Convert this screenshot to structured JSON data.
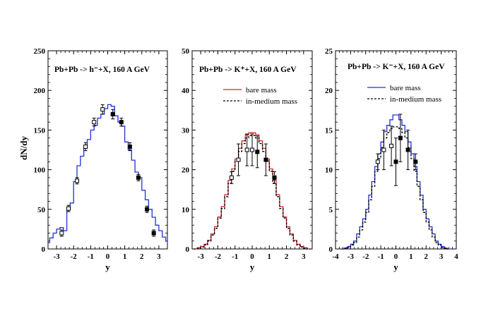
{
  "figure": {
    "ylabel": "dN/dy",
    "xlabel": "y"
  },
  "chart_data": [
    {
      "type": "line",
      "title": "Pb+Pb -> h⁻+X,  160 A GeV",
      "xlabel": "y",
      "ylabel": "dN/dy",
      "xlim": [
        -3.5,
        3.5
      ],
      "ylim": [
        0,
        250
      ],
      "xticks": [
        -3,
        -2,
        -1,
        0,
        1,
        2,
        3
      ],
      "yticks": [
        0,
        50,
        100,
        150,
        200,
        250
      ],
      "series": [
        {
          "color": "#2431d6",
          "style": "solid",
          "x": [
            -3.5,
            -3.3,
            -3.1,
            -2.9,
            -2.7,
            -2.5,
            -2.3,
            -2.1,
            -1.9,
            -1.7,
            -1.5,
            -1.3,
            -1.1,
            -0.9,
            -0.7,
            -0.5,
            -0.3,
            -0.1,
            0.1,
            0.3,
            0.5,
            0.7,
            0.9,
            1.1,
            1.3,
            1.5,
            1.7,
            1.9,
            2.1,
            2.3,
            2.5,
            2.7,
            2.9,
            3.1,
            3.3,
            3.5
          ],
          "values": [
            8,
            14,
            20,
            25,
            27,
            23,
            50,
            58,
            85,
            105,
            117,
            128,
            138,
            150,
            156,
            165,
            170,
            177,
            182,
            180,
            168,
            160,
            155,
            135,
            125,
            112,
            97,
            90,
            74,
            62,
            50,
            40,
            30,
            23,
            15,
            10
          ]
        }
      ],
      "data_points": [
        {
          "x": -2.7,
          "y": 20,
          "err": 4,
          "marker": "open"
        },
        {
          "x": -2.3,
          "y": 51,
          "err": 4,
          "marker": "open"
        },
        {
          "x": -1.8,
          "y": 86,
          "err": 4,
          "marker": "open"
        },
        {
          "x": -1.3,
          "y": 129,
          "err": 5,
          "marker": "open"
        },
        {
          "x": -0.8,
          "y": 160,
          "err": 5,
          "marker": "open"
        },
        {
          "x": -0.3,
          "y": 176,
          "err": 6,
          "marker": "open"
        },
        {
          "x": 0.3,
          "y": 170,
          "err": 6,
          "marker": "filled"
        },
        {
          "x": 0.8,
          "y": 160,
          "err": 5,
          "marker": "filled"
        },
        {
          "x": 1.3,
          "y": 129,
          "err": 5,
          "marker": "filled"
        },
        {
          "x": 1.8,
          "y": 90,
          "err": 4,
          "marker": "filled"
        },
        {
          "x": 2.3,
          "y": 50,
          "err": 4,
          "marker": "filled"
        },
        {
          "x": 2.7,
          "y": 20,
          "err": 4,
          "marker": "filled"
        }
      ]
    },
    {
      "type": "line",
      "title": "Pb+Pb -> K⁺+X,  160 A GeV",
      "xlabel": "y",
      "ylabel": "",
      "xlim": [
        -3.5,
        3.5
      ],
      "ylim": [
        0,
        50
      ],
      "xticks": [
        -3,
        -2,
        -1,
        0,
        1,
        2,
        3
      ],
      "yticks": [
        0,
        10,
        20,
        30,
        40,
        50
      ],
      "legend": {
        "position": "top-right",
        "entries": [
          "bare mass",
          "in-medium mass"
        ]
      },
      "series": [
        {
          "name": "bare mass",
          "color": "#d42a2a",
          "style": "solid",
          "x": [
            -3.3,
            -3.1,
            -2.9,
            -2.7,
            -2.5,
            -2.3,
            -2.1,
            -1.9,
            -1.7,
            -1.5,
            -1.3,
            -1.1,
            -0.9,
            -0.7,
            -0.5,
            -0.3,
            -0.1,
            0.1,
            0.3,
            0.5,
            0.7,
            0.9,
            1.1,
            1.3,
            1.5,
            1.7,
            1.9,
            2.1,
            2.3,
            2.5,
            2.7,
            2.9,
            3.1,
            3.3
          ],
          "values": [
            0,
            0.3,
            0.6,
            1.2,
            2.2,
            3.8,
            5.6,
            8.1,
            10.7,
            13.7,
            17.3,
            20.2,
            22.7,
            25.4,
            27.3,
            28.8,
            29.3,
            29.3,
            28.8,
            27.3,
            25.4,
            22.7,
            20.2,
            17.3,
            13.7,
            10.7,
            8.1,
            5.6,
            3.8,
            2.2,
            1.2,
            0.6,
            0.3,
            0
          ]
        },
        {
          "name": "in-medium mass",
          "color": "#000000",
          "style": "dashed",
          "x": [
            -3.3,
            -3.1,
            -2.9,
            -2.7,
            -2.5,
            -2.3,
            -2.1,
            -1.9,
            -1.7,
            -1.5,
            -1.3,
            -1.1,
            -0.9,
            -0.7,
            -0.5,
            -0.3,
            -0.1,
            0.1,
            0.3,
            0.5,
            0.7,
            0.9,
            1.1,
            1.3,
            1.5,
            1.7,
            1.9,
            2.1,
            2.3,
            2.5,
            2.7,
            2.9,
            3.1,
            3.3
          ],
          "values": [
            0,
            0.2,
            0.5,
            1.0,
            2.0,
            3.5,
            5.2,
            7.8,
            10.2,
            13.2,
            16.6,
            19.6,
            22.2,
            24.6,
            26.6,
            28.0,
            28.6,
            28.6,
            28.0,
            26.6,
            24.6,
            22.2,
            19.6,
            16.6,
            13.2,
            10.2,
            7.8,
            5.2,
            3.5,
            2.0,
            1.0,
            0.5,
            0.2,
            0
          ]
        }
      ],
      "data_points": [
        {
          "x": -1.2,
          "y": 18,
          "err": 1.5,
          "marker": "open"
        },
        {
          "x": -0.8,
          "y": 22.5,
          "err": 4,
          "marker": "open"
        },
        {
          "x": -0.3,
          "y": 25,
          "err": 4,
          "marker": "open"
        },
        {
          "x": 0.0,
          "y": 25,
          "err": 4,
          "marker": "open"
        },
        {
          "x": 0.3,
          "y": 24.5,
          "err": 4,
          "marker": "filled"
        },
        {
          "x": 0.8,
          "y": 22.5,
          "err": 4,
          "marker": "filled"
        },
        {
          "x": 1.3,
          "y": 18,
          "err": 1.5,
          "marker": "filled"
        }
      ]
    },
    {
      "type": "line",
      "title": "Pb+Pb -> K⁻+X,  160 A GeV",
      "xlabel": "y",
      "ylabel": "",
      "xlim": [
        -4,
        4
      ],
      "ylim": [
        0,
        25
      ],
      "xticks": [
        -4,
        -3,
        -2,
        -1,
        0,
        1,
        2,
        3,
        4
      ],
      "yticks": [
        0,
        5,
        10,
        15,
        20,
        25
      ],
      "legend": {
        "position": "top-right",
        "entries": [
          "bare mass",
          "in-medium mass"
        ]
      },
      "series": [
        {
          "name": "bare mass",
          "color": "#2431d6",
          "style": "solid",
          "x": [
            -3.5,
            -3.3,
            -3.1,
            -2.9,
            -2.7,
            -2.5,
            -2.3,
            -2.1,
            -1.9,
            -1.7,
            -1.5,
            -1.3,
            -1.1,
            -0.9,
            -0.7,
            -0.5,
            -0.3,
            -0.1,
            0.1,
            0.3,
            0.5,
            0.7,
            0.9,
            1.1,
            1.3,
            1.5,
            1.7,
            1.9,
            2.1,
            2.3,
            2.5,
            2.7,
            2.9,
            3.1,
            3.3,
            3.5
          ],
          "values": [
            0,
            0.1,
            0.3,
            0.6,
            1.0,
            1.9,
            2.8,
            3.8,
            5.0,
            6.8,
            8.5,
            10.4,
            12.0,
            13.5,
            14.8,
            15.6,
            16.3,
            16.9,
            16.9,
            16.3,
            15.6,
            14.8,
            13.5,
            12.0,
            10.4,
            8.5,
            6.8,
            5.0,
            3.8,
            2.8,
            1.9,
            1.0,
            0.6,
            0.3,
            0.1,
            0
          ]
        },
        {
          "name": "in-medium mass",
          "color": "#000000",
          "style": "dashed",
          "x": [
            -3.5,
            -3.3,
            -3.1,
            -2.9,
            -2.7,
            -2.5,
            -2.3,
            -2.1,
            -1.9,
            -1.7,
            -1.5,
            -1.3,
            -1.1,
            -0.9,
            -0.7,
            -0.5,
            -0.3,
            -0.1,
            0.1,
            0.3,
            0.5,
            0.7,
            0.9,
            1.1,
            1.3,
            1.5,
            1.7,
            1.9,
            2.1,
            2.3,
            2.5,
            2.7,
            2.9,
            3.1,
            3.3,
            3.5
          ],
          "values": [
            0,
            0.1,
            0.2,
            0.5,
            0.8,
            1.5,
            2.4,
            3.4,
            4.6,
            6.2,
            7.9,
            9.8,
            11.4,
            12.8,
            14.0,
            14.7,
            15.2,
            15.4,
            15.4,
            15.2,
            14.7,
            14.0,
            12.8,
            11.4,
            9.8,
            7.9,
            6.2,
            4.6,
            3.4,
            2.4,
            1.5,
            0.8,
            0.5,
            0.2,
            0.1,
            0
          ]
        }
      ],
      "data_points": [
        {
          "x": -1.2,
          "y": 11,
          "err": 1,
          "marker": "open"
        },
        {
          "x": -0.8,
          "y": 12.5,
          "err": 2.5,
          "marker": "open"
        },
        {
          "x": -0.3,
          "y": 13,
          "err": 2.5,
          "marker": "open"
        },
        {
          "x": 0.0,
          "y": 11,
          "err": 3,
          "marker": "filled"
        },
        {
          "x": 0.3,
          "y": 14,
          "err": 3,
          "marker": "filled"
        },
        {
          "x": 0.8,
          "y": 12.5,
          "err": 2.5,
          "marker": "filled"
        },
        {
          "x": 1.3,
          "y": 11,
          "err": 1,
          "marker": "filled"
        }
      ]
    }
  ]
}
